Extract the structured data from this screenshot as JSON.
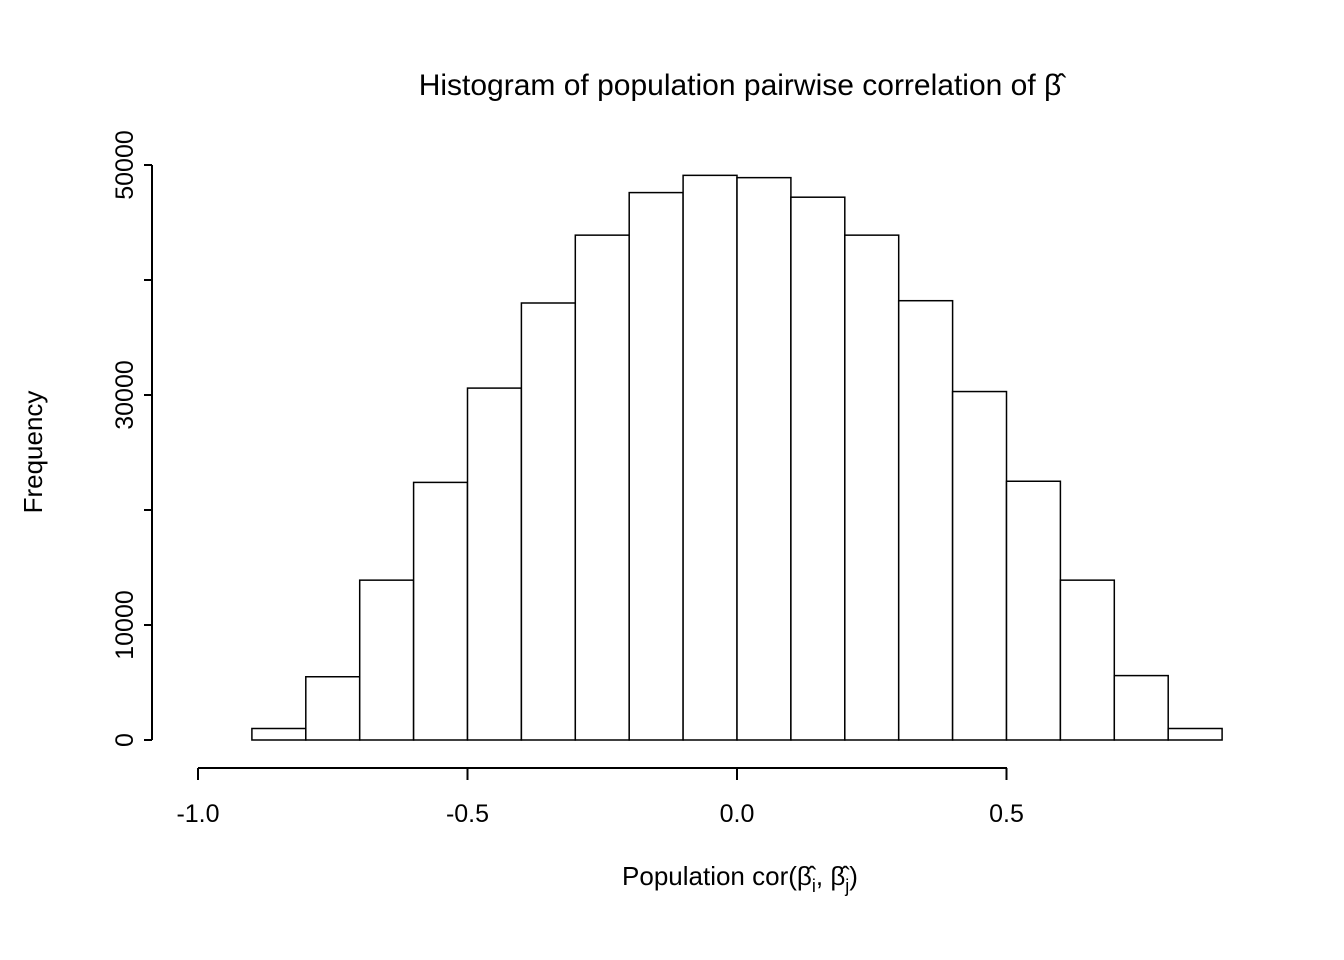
{
  "chart_data": {
    "type": "bar",
    "subtype": "histogram",
    "title": "Histogram of population pairwise correlation of β̂",
    "xlabel": "Population cor(β̂i, β̂j)",
    "xlabel_parts": {
      "prefix": "Population cor(",
      "beta": "β̂",
      "sub_i": "i",
      "comma": ", ",
      "sub_j": "j",
      "close": ")"
    },
    "ylabel": "Frequency",
    "bin_start": -0.9,
    "bin_width": 0.1,
    "bin_edges": [
      -0.9,
      -0.8,
      -0.7,
      -0.6,
      -0.5,
      -0.4,
      -0.3,
      -0.2,
      -0.1,
      0.0,
      0.1,
      0.2,
      0.3,
      0.4,
      0.5,
      0.6,
      0.7,
      0.8,
      0.9
    ],
    "counts": [
      1000,
      5500,
      13900,
      22400,
      30600,
      38000,
      43900,
      47600,
      49100,
      48900,
      47200,
      43900,
      38200,
      30300,
      22500,
      13900,
      5600,
      1000
    ],
    "x_ticks": {
      "values": [
        -1.0,
        -0.5,
        0.0,
        0.5
      ],
      "labels": [
        "-1.0",
        "-0.5",
        "0.0",
        "0.5"
      ]
    },
    "y_ticks": {
      "values": [
        0,
        10000,
        20000,
        30000,
        40000,
        50000
      ],
      "labeled_values": [
        0,
        10000,
        30000,
        50000
      ],
      "labels": [
        "0",
        "10000",
        "30000",
        "50000"
      ]
    },
    "xlim": [
      -1.0,
      0.95
    ],
    "ylim": [
      0,
      50000
    ],
    "grid": false,
    "legend": "none",
    "bar_fill": "#ffffff",
    "stroke": "#000000",
    "background": "#ffffff"
  }
}
